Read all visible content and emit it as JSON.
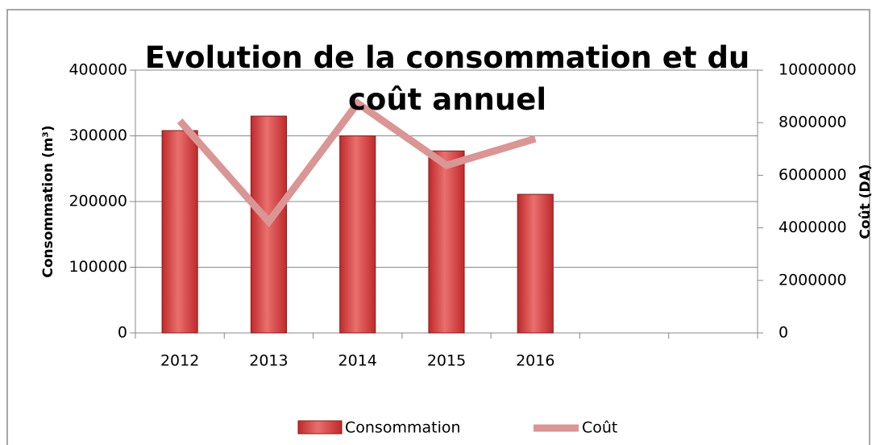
{
  "chart_data": {
    "type": "bar-line",
    "title": "Evolution de la consommation et du coût annuel",
    "y_label": "Consommation (m³)",
    "y2_label": "Coût (DA)",
    "categories": [
      "2012",
      "2013",
      "2014",
      "2015",
      "2016",
      null,
      null
    ],
    "series": [
      {
        "name": "Consommation",
        "type": "bar",
        "color": "#c0292b",
        "values": [
          308000,
          330000,
          300000,
          277000,
          211000,
          null,
          null
        ]
      },
      {
        "name": "Coût",
        "type": "line",
        "axis": "y2",
        "color": "#d99694",
        "values": [
          8070000,
          4230000,
          8740000,
          6380000,
          7390000,
          null,
          null
        ]
      }
    ],
    "ylim": [
      0,
      400000
    ],
    "yticks": [
      0,
      100000,
      200000,
      300000,
      400000
    ],
    "y2lim": [
      0,
      10000000
    ],
    "y2ticks": [
      0,
      2000000,
      4000000,
      6000000,
      8000000,
      10000000
    ],
    "grid": true,
    "legend": "bottom"
  }
}
